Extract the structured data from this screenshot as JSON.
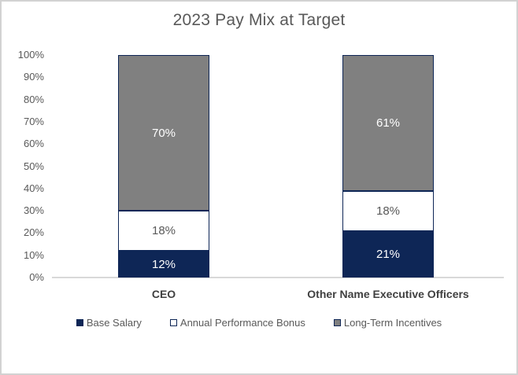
{
  "chart_data": {
    "type": "bar",
    "subtype": "stacked-vertical",
    "title": "2023 Pay Mix at Target",
    "categories": [
      "CEO",
      "Other Name Executive Officers"
    ],
    "series": [
      {
        "name": "Base Salary",
        "values": [
          12,
          21
        ],
        "color": "#0e2656",
        "label_color": "#ffffff"
      },
      {
        "name": "Annual Performance Bonus",
        "values": [
          18,
          18
        ],
        "color": "#ffffff",
        "label_color": "#595959"
      },
      {
        "name": "Long-Term Incentives",
        "values": [
          70,
          61
        ],
        "color": "#808080",
        "label_color": "#ffffff"
      }
    ],
    "value_suffix": "%",
    "yticks": [
      "0%",
      "10%",
      "20%",
      "30%",
      "40%",
      "50%",
      "60%",
      "70%",
      "80%",
      "90%",
      "100%"
    ],
    "ylim": [
      0,
      100
    ],
    "grid": false,
    "legend_position": "bottom",
    "colors": {
      "title_text": "#595959",
      "axis_text": "#595959",
      "category_text": "#404040",
      "axis_line": "#d9d9d9",
      "segment_border": "#0e2656",
      "frame_border": "#d2d2d2"
    }
  }
}
